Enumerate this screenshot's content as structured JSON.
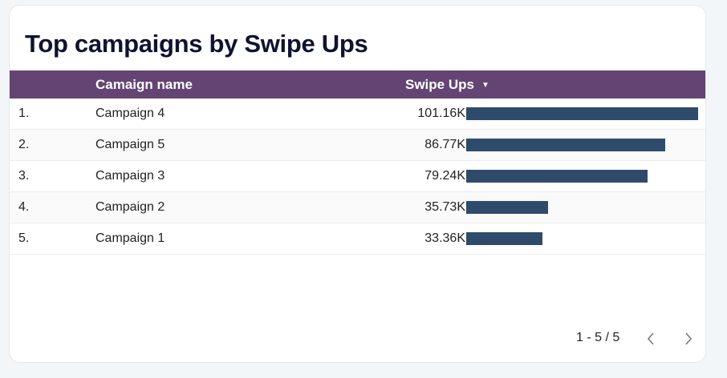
{
  "title": "Top campaigns by Swipe Ups",
  "columns": {
    "name": "Camaign name",
    "metric": "Swipe Ups",
    "sort_icon": "sort-desc-icon"
  },
  "max_value": 101.16,
  "rows": [
    {
      "index": "1.",
      "name": "Campaign 4",
      "value": 101.16,
      "label": "101.16K"
    },
    {
      "index": "2.",
      "name": "Campaign 5",
      "value": 86.77,
      "label": "86.77K"
    },
    {
      "index": "3.",
      "name": "Campaign 3",
      "value": 79.24,
      "label": "79.24K"
    },
    {
      "index": "4.",
      "name": "Campaign 2",
      "value": 35.73,
      "label": "35.73K"
    },
    {
      "index": "5.",
      "name": "Campaign 1",
      "value": 33.36,
      "label": "33.36K"
    }
  ],
  "pagination": {
    "label": "1 - 5 / 5",
    "prev_icon": "chevron-left-icon",
    "next_icon": "chevron-right-icon"
  },
  "colors": {
    "header_bg": "#634473",
    "bar": "#2f4b6b",
    "title": "#0f1330"
  }
}
